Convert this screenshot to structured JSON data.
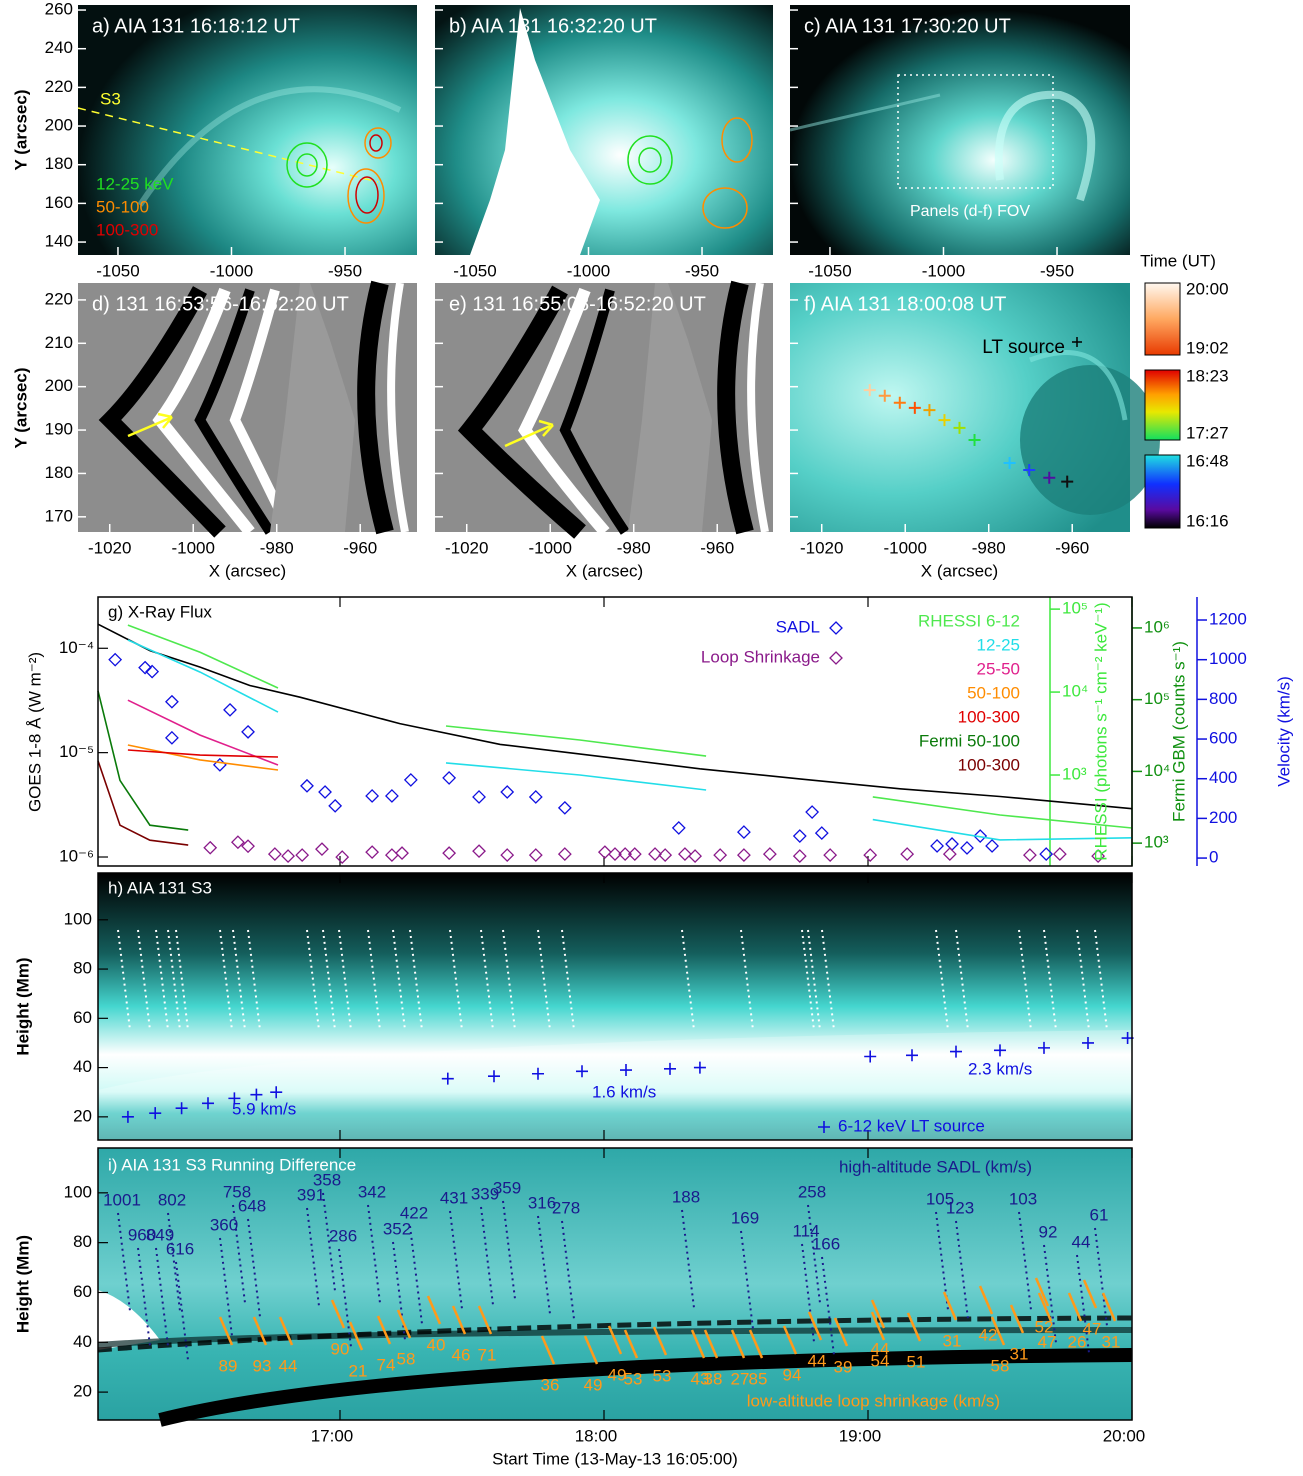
{
  "figure": {
    "row1": {
      "panels": [
        {
          "label": "a) AIA 131 16:18:12 UT"
        },
        {
          "label": "b) AIA 131 16:32:20 UT"
        },
        {
          "label": "c) AIA 131 17:30:20 UT"
        }
      ],
      "xlim": [
        -1067.6,
        -918.3
      ],
      "ylim": [
        133.3,
        262.6
      ],
      "xticks": [
        -1050,
        -1000,
        -950
      ],
      "yticks": [
        140,
        160,
        180,
        200,
        220,
        240,
        260
      ],
      "ylabel": "Y (arcsec)",
      "s3_label": "S3",
      "energy_legend": [
        "12-25 keV",
        "50-100",
        "100-300"
      ],
      "fov_label": "Panels (d-f) FOV"
    },
    "row2": {
      "panels": [
        {
          "label": "d) 131 16:53:56-16:52:20 UT"
        },
        {
          "label": "e) 131 16:55:08-16:52:20 UT"
        },
        {
          "label": "f) AIA 131 18:00:08 UT"
        }
      ],
      "xlim": [
        -1027.6,
        -946.4
      ],
      "ylim": [
        166.5,
        223.9
      ],
      "xticks": [
        -1020,
        -1000,
        -980,
        -960
      ],
      "yticks": [
        170,
        180,
        190,
        200,
        210,
        220
      ],
      "xlabel": "X (arcsec)",
      "ylabel": "Y (arcsec)",
      "lt_label": "LT source",
      "lt_x": [
        -1008.5,
        -1004.9,
        -1001.3,
        -997.7,
        -994.2,
        -990.6,
        -987,
        -983.4,
        -975,
        -970.3,
        -965.5,
        -961.2
      ],
      "lt_y": [
        199.2,
        197.9,
        196.3,
        195.1,
        194.6,
        192.3,
        190.5,
        187.7,
        182.4,
        180.8,
        179,
        178.1
      ]
    },
    "colorbar": {
      "title": "Time (UT)",
      "ranges": [
        [
          "20:00",
          "19:02"
        ],
        [
          "18:23",
          "17:27"
        ],
        [
          "16:48",
          "16:16"
        ]
      ]
    },
    "time_axis": {
      "xlim": [
        0,
        235
      ],
      "xticks": [
        {
          "value": 55,
          "label": "17:00"
        },
        {
          "value": 115,
          "label": "18:00"
        },
        {
          "value": 175,
          "label": "19:00"
        },
        {
          "value": 235,
          "label": "20:00"
        }
      ],
      "xlabel": "Start Time (13-May-13 16:05:00)"
    },
    "panel_g": {
      "title": "g) X-Ray Flux",
      "ylabel": "GOES 1-8 Å (W m⁻²)",
      "log_y": true,
      "ylim": [
        8.2e-07,
        0.00031
      ],
      "yticks": [
        {
          "value": 1e-06,
          "label": "10⁻⁶"
        },
        {
          "value": 1e-05,
          "label": "10⁻⁵"
        },
        {
          "value": 0.0001,
          "label": "10⁻⁴"
        }
      ],
      "rhessi_axis": {
        "label": "RHESSI (photons s⁻¹ cm⁻² keV⁻¹)",
        "color": "#3ee83e",
        "ylim": [
          80,
          140000
        ],
        "yticks": [
          {
            "value": 1000,
            "label": "10³"
          },
          {
            "value": 10000,
            "label": "10⁴"
          },
          {
            "value": 100000,
            "label": "10⁵"
          }
        ]
      },
      "fermi_axis": {
        "label": "Fermi GBM (counts s⁻¹)",
        "color": "#109010",
        "ylim": [
          480,
          2700000
        ],
        "yticks": [
          {
            "value": 1000,
            "label": "10³"
          },
          {
            "value": 10000,
            "label": "10⁴"
          },
          {
            "value": 100000,
            "label": "10⁵"
          },
          {
            "value": 1000000,
            "label": "10⁶"
          }
        ]
      },
      "velocity_axis": {
        "label": "Velocity (km/s)",
        "color": "#1010e0",
        "ylim": [
          -40,
          1316
        ],
        "yticks": [
          0,
          200,
          400,
          600,
          800,
          1000,
          1200
        ]
      },
      "series": [
        {
          "color": "#000000",
          "axis": "y",
          "x": [
            0,
            11.8,
            23.2,
            34.5,
            45.9,
            68.6,
            91.4,
            114.1,
            136.8,
            159.5,
            182.3,
            205,
            227.7,
            235
          ],
          "values": [
            0.00017,
            9.5e-05,
            6.6e-05,
            4.4e-05,
            3.4e-05,
            1.9e-05,
            1.2e-05,
            9.2e-06,
            7e-06,
            5.6e-06,
            4.5e-06,
            3.8e-06,
            3.1e-06,
            2.9e-06
          ]
        },
        {
          "name": "SADL",
          "color": "#1010e0",
          "axis": "velocity",
          "marker": "diamond",
          "x": [
            3.9,
            10.7,
            12.3,
            16.8,
            16.8,
            27.7,
            30,
            34.1,
            47.5,
            51.6,
            53.9,
            62.3,
            66.8,
            71.1,
            79.8,
            86.6,
            93,
            99.5,
            106.1,
            132,
            146.8,
            159.5,
            162.3,
            164.5,
            190.7,
            194.1,
            197.5,
            200.5,
            203.2,
            215.5
          ],
          "values": [
            1000,
            960,
            940,
            788,
            606,
            470,
            747,
            636,
            364,
            333,
            263,
            313,
            313,
            394,
            404,
            308,
            333,
            308,
            253,
            152,
            131,
            111,
            232,
            126,
            61,
            71,
            51,
            111,
            61,
            20
          ]
        },
        {
          "name": "Loop Shrinkage",
          "color": "#8a1a8a",
          "axis": "velocity",
          "marker": "diamond",
          "x": [
            25.5,
            31.8,
            34.1,
            40.2,
            43.2,
            46.4,
            50.9,
            55.5,
            62.3,
            66.8,
            69.1,
            79.8,
            86.6,
            93,
            99.5,
            106.1,
            115.2,
            117.5,
            119.8,
            122,
            126.6,
            128.9,
            133.4,
            135.7,
            141.4,
            146.8,
            152.7,
            159.5,
            166.4,
            175.5,
            183.9,
            193.6,
            211.8,
            218.6,
            227.3
          ],
          "values": [
            52,
            80,
            60,
            20,
            10,
            15,
            45,
            5,
            30,
            15,
            25,
            25,
            35,
            15,
            15,
            20,
            30,
            20,
            20,
            20,
            20,
            15,
            20,
            10,
            15,
            15,
            20,
            10,
            15,
            15,
            20,
            20,
            15,
            20,
            10
          ]
        },
        {
          "name": "RHESSI  6-12",
          "color": "#4ee84e",
          "axis": "rhessi",
          "x": [
            6.8,
            23.2,
            40.9,
            60,
            79.1,
            109.5,
            138.2,
            157,
            176.1,
            205,
            235
          ],
          "values": [
            64100,
            30200,
            11200,
            null,
            3900,
            2640,
            1690,
            null,
            544,
            330,
            230
          ]
        },
        {
          "name": "12-25",
          "color": "#22dde8",
          "axis": "rhessi",
          "x": [
            6.8,
            23.2,
            40.9,
            60,
            79.1,
            109.5,
            138.2,
            157,
            176.1,
            205,
            235
          ],
          "values": [
            42400,
            17400,
            5740,
            null,
            1400,
            1000,
            660,
            null,
            290,
            165,
            175
          ]
        },
        {
          "name": "25-50",
          "color": "#e0208c",
          "axis": "rhessi",
          "x": [
            6.8,
            23.2,
            40.9
          ],
          "values": [
            7980,
            3030,
            1320
          ]
        },
        {
          "name": "50-100",
          "color": "#ff8c00",
          "axis": "rhessi",
          "x": [
            6.8,
            23.2,
            40.9
          ],
          "values": [
            2300,
            1520,
            1150
          ]
        },
        {
          "name": "100-300",
          "color": "#e00000",
          "axis": "rhessi",
          "x": [
            6.8,
            23.2,
            40.9
          ],
          "values": [
            2000,
            1740,
            1650
          ]
        },
        {
          "name": "Fermi  50-100",
          "color": "#0a7a0a",
          "axis": "fermi",
          "x": [
            0,
            5,
            11.8,
            20.5
          ],
          "values": [
            133000,
            7500,
            1780,
            1520
          ]
        },
        {
          "name": "100-300",
          "color": "#7a0000",
          "axis": "fermi",
          "x": [
            0,
            5,
            11.8,
            20.5
          ],
          "values": [
            14100,
            1780,
            1100,
            940
          ]
        }
      ]
    },
    "panel_h": {
      "title": "h) AIA 131 S3",
      "ylabel": "Height (Mm)",
      "ylim": [
        10.6,
        119
      ],
      "yticks": [
        20,
        40,
        60,
        80,
        100
      ],
      "lt_series": {
        "name": "6-12 keV LT source",
        "color": "#1010e0",
        "x": [
          6.8,
          13,
          19,
          25,
          31,
          36,
          40.5,
          60,
          79.5,
          90,
          100,
          110,
          120,
          130,
          136.8,
          156,
          175.5,
          185,
          195,
          205,
          215,
          225,
          234
        ],
        "values": [
          20,
          21.5,
          23.5,
          25.5,
          27.5,
          29,
          30,
          null,
          35.5,
          36.5,
          37.5,
          38.5,
          39,
          39.5,
          40,
          null,
          44.5,
          45,
          46.5,
          47,
          48,
          50,
          52
        ]
      },
      "fit_labels": [
        "5.9 km/s",
        "1.6 km/s",
        "2.3 km/s"
      ]
    },
    "panel_i": {
      "title": "i) AIA 131 S3 Running Difference",
      "ylabel": "Height (Mm)",
      "ylim": [
        8.8,
        118
      ],
      "yticks": [
        20,
        40,
        60,
        80,
        100
      ],
      "high_title": "high-altitude SADL (km/s)",
      "low_title": "low-altitude loop shrinkage (km/s)",
      "high_speeds": [
        1001,
        960,
        849,
        802,
        616,
        758,
        648,
        360,
        391,
        358,
        286,
        342,
        352,
        422,
        431,
        339,
        359,
        316,
        278,
        188,
        169,
        258,
        114,
        166,
        105,
        123,
        103,
        92,
        44,
        61
      ],
      "low_speeds": [
        89,
        93,
        44,
        90,
        21,
        74,
        58,
        40,
        46,
        71,
        36,
        49,
        49,
        53,
        53,
        43,
        38,
        27,
        85,
        94,
        44,
        39,
        44,
        54,
        51,
        31,
        42,
        58,
        31,
        52,
        47,
        26,
        47,
        31
      ]
    }
  }
}
